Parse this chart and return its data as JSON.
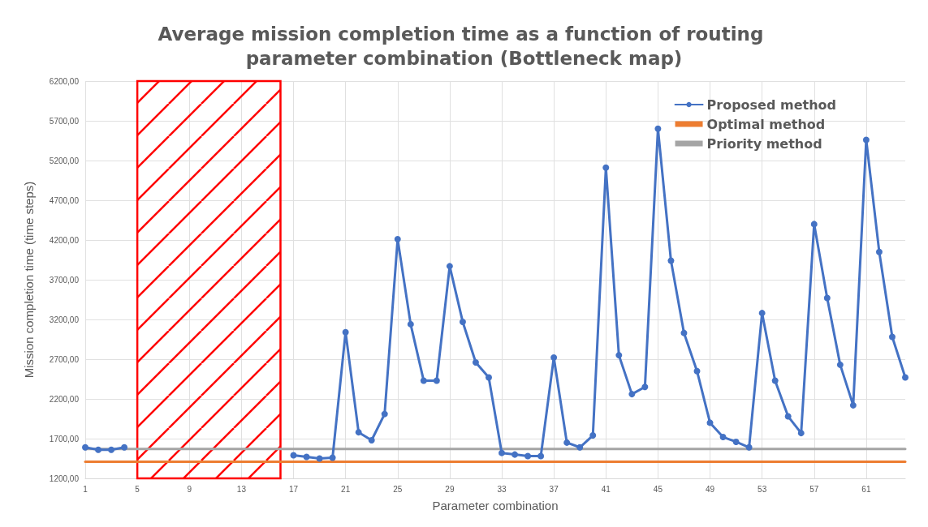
{
  "chart_data": {
    "type": "line",
    "title": "Average mission completion time as a function of routing parameter combination (Bottleneck map)",
    "xlabel": "Parameter combination",
    "ylabel": "Mission completion time (time steps)",
    "x": [
      1,
      2,
      3,
      4,
      5,
      6,
      7,
      8,
      9,
      10,
      11,
      12,
      13,
      14,
      15,
      16,
      17,
      18,
      19,
      20,
      21,
      22,
      23,
      24,
      25,
      26,
      27,
      28,
      29,
      30,
      31,
      32,
      33,
      34,
      35,
      36,
      37,
      38,
      39,
      40,
      41,
      42,
      43,
      44,
      45,
      46,
      47,
      48,
      49,
      50,
      51,
      52,
      53,
      54,
      55,
      56,
      57,
      58,
      59,
      60,
      61,
      62,
      63,
      64
    ],
    "series": [
      {
        "name": "Proposed method",
        "color": "#4472c4",
        "marker": "circle",
        "values": [
          1590,
          1560,
          1560,
          1590,
          null,
          null,
          null,
          null,
          null,
          null,
          null,
          null,
          null,
          null,
          null,
          null,
          1490,
          1470,
          1450,
          1460,
          3040,
          1780,
          1680,
          2010,
          4210,
          3140,
          2430,
          2430,
          3870,
          3170,
          2660,
          2470,
          1520,
          1500,
          1480,
          1480,
          2720,
          1650,
          1590,
          1740,
          5110,
          2750,
          2260,
          2350,
          5600,
          3940,
          3030,
          2550,
          1900,
          1720,
          1660,
          1590,
          3280,
          2430,
          1980,
          1770,
          4400,
          3470,
          2630,
          2120,
          5460,
          4050,
          2980,
          2470
        ]
      },
      {
        "name": "Optimal method",
        "color": "#ed7d31",
        "marker": "none",
        "values": [
          1410,
          1410,
          1410,
          1410,
          1410,
          1410,
          1410,
          1410,
          1410,
          1410,
          1410,
          1410,
          1410,
          1410,
          1410,
          1410,
          1410,
          1410,
          1410,
          1410,
          1410,
          1410,
          1410,
          1410,
          1410,
          1410,
          1410,
          1410,
          1410,
          1410,
          1410,
          1410,
          1410,
          1410,
          1410,
          1410,
          1410,
          1410,
          1410,
          1410,
          1410,
          1410,
          1410,
          1410,
          1410,
          1410,
          1410,
          1410,
          1410,
          1410,
          1410,
          1410,
          1410,
          1410,
          1410,
          1410,
          1410,
          1410,
          1410,
          1410,
          1410,
          1410,
          1410,
          1410
        ]
      },
      {
        "name": "Priority method",
        "color": "#a5a5a5",
        "marker": "none",
        "values": [
          1570,
          1570,
          1570,
          1570,
          1570,
          1570,
          1570,
          1570,
          1570,
          1570,
          1570,
          1570,
          1570,
          1570,
          1570,
          1570,
          1570,
          1570,
          1570,
          1570,
          1570,
          1570,
          1570,
          1570,
          1570,
          1570,
          1570,
          1570,
          1570,
          1570,
          1570,
          1570,
          1570,
          1570,
          1570,
          1570,
          1570,
          1570,
          1570,
          1570,
          1570,
          1570,
          1570,
          1570,
          1570,
          1570,
          1570,
          1570,
          1570,
          1570,
          1570,
          1570,
          1570,
          1570,
          1570,
          1570,
          1570,
          1570,
          1570,
          1570,
          1570,
          1570,
          1570,
          1570
        ]
      }
    ],
    "xlim": [
      1,
      64
    ],
    "xticks": [
      1,
      5,
      9,
      13,
      17,
      21,
      25,
      29,
      33,
      37,
      41,
      45,
      49,
      53,
      57,
      61
    ],
    "ylim": [
      1200,
      6200
    ],
    "yticks": [
      {
        "value": 1200,
        "label": "1200,00"
      },
      {
        "value": 1700,
        "label": "1700,00"
      },
      {
        "value": 2200,
        "label": "2200,00"
      },
      {
        "value": 2700,
        "label": "2700,00"
      },
      {
        "value": 3200,
        "label": "3200,00"
      },
      {
        "value": 3700,
        "label": "3700,00"
      },
      {
        "value": 4200,
        "label": "4200,00"
      },
      {
        "value": 4700,
        "label": "4700,00"
      },
      {
        "value": 5200,
        "label": "5200,00"
      },
      {
        "value": 5700,
        "label": "5700,00"
      },
      {
        "value": 6200,
        "label": "6200,00"
      }
    ],
    "bands": [
      {
        "axis": "x",
        "from": 5,
        "to": 16,
        "color": "#ff0000"
      }
    ],
    "grid": true,
    "legend": "top right",
    "line_style": "solid"
  }
}
